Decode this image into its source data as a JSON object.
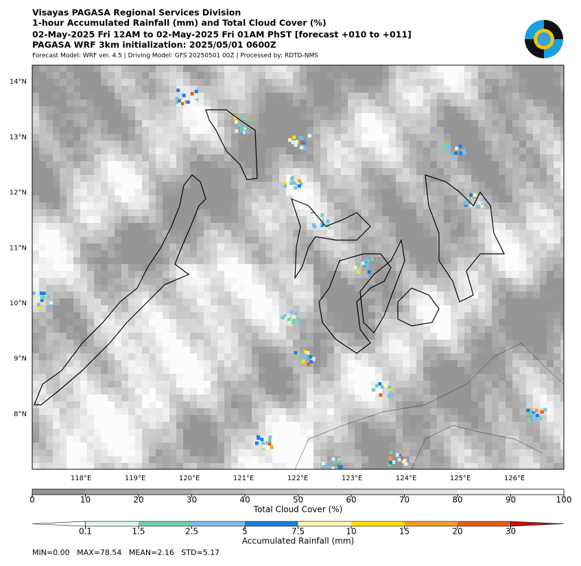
{
  "header": {
    "lines": [
      "Visayas PAGASA Regional Services Division",
      "1-hour Accumulated Rainfall (mm) and Total Cloud Cover (%)",
      "02-May-2025 Fri 12AM to 02-May-2025 Fri 01AM PhST [forecast +010 to +011]",
      "PAGASA WRF 3km initialization: 2025/05/01 0600Z"
    ],
    "subline": "Forecast Model: WRF ver. 4.5 | Driving Model: GFS 20250501 00Z | Processed by: RDTD-NMS"
  },
  "map": {
    "lat_range": [
      7.0,
      14.3
    ],
    "lon_range": [
      117.1,
      126.91
    ],
    "lat_ticks": [
      {
        "value": 14,
        "label": "14°N"
      },
      {
        "value": 13,
        "label": "13°N"
      },
      {
        "value": 12,
        "label": "12°N"
      },
      {
        "value": 11,
        "label": "11°N"
      },
      {
        "value": 10,
        "label": "10°N"
      },
      {
        "value": 9,
        "label": "9°N"
      },
      {
        "value": 8,
        "label": "8°N"
      }
    ],
    "lon_ticks": [
      {
        "value": 118,
        "label": "118°E"
      },
      {
        "value": 119,
        "label": "119°E"
      },
      {
        "value": 120,
        "label": "120°E"
      },
      {
        "value": 121,
        "label": "121°E"
      },
      {
        "value": 122,
        "label": "122°E"
      },
      {
        "value": 123,
        "label": "123°E"
      },
      {
        "value": 124,
        "label": "124°E"
      },
      {
        "value": 125,
        "label": "125°E"
      },
      {
        "value": 126,
        "label": "126°E"
      }
    ]
  },
  "cloud_colorbar": {
    "label": "Total Cloud Cover (%)",
    "range": [
      0,
      100
    ],
    "ticks": [
      0,
      10,
      20,
      30,
      40,
      50,
      60,
      70,
      80,
      90,
      100
    ],
    "colors": [
      "#979797",
      "#a3a3a3",
      "#aeaeae",
      "#b9b9b9",
      "#c4c4c4",
      "#cfcfcf",
      "#dadada",
      "#e5e5e5",
      "#f0f0f0",
      "#fbfbfb"
    ]
  },
  "rain_colorbar": {
    "label": "Accumulated Rainfall (mm)",
    "ticks": [
      0.1,
      1.5,
      2.5,
      5,
      7.5,
      10,
      15,
      20,
      30
    ],
    "under_color": "#ffffff",
    "colors": [
      "#dff5ec",
      "#6ed2b0",
      "#7cbef0",
      "#1a7ee0",
      "#fffcb0",
      "#ffe100",
      "#f5a020",
      "#ee5c10"
    ],
    "over_color": "#c01515"
  },
  "stats": "MIN=0.00   MAX=78.54   MEAN=2.16   STD=5.17"
}
